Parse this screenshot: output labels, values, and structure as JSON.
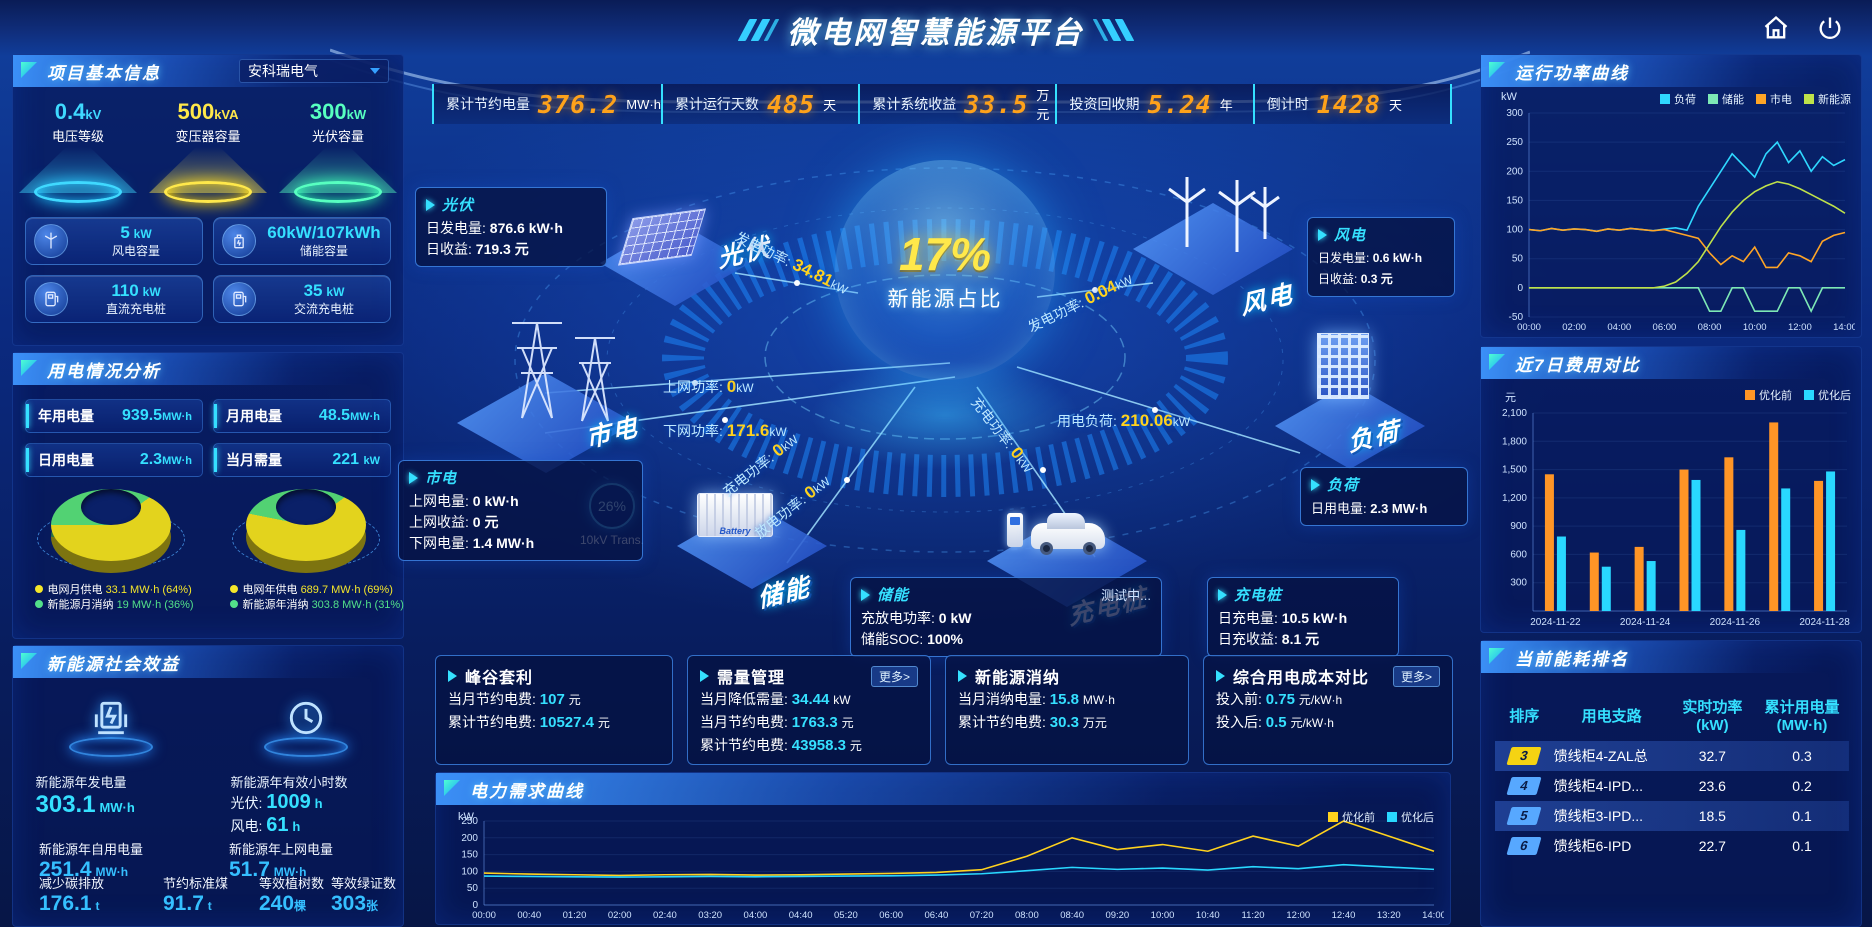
{
  "header": {
    "title": "微电网智慧能源平台",
    "home_icon": "home-icon",
    "power_icon": "power-icon"
  },
  "kpis": [
    {
      "label": "累计节约电量",
      "value": "376.2",
      "unit": "MW·h"
    },
    {
      "label": "累计运行天数",
      "value": "485",
      "unit": "天"
    },
    {
      "label": "累计系统收益",
      "value": "33.5",
      "unit": "万元"
    },
    {
      "label": "投资回收期",
      "value": "5.24",
      "unit": "年"
    },
    {
      "label": "倒计时",
      "value": "1428",
      "unit": "天"
    }
  ],
  "project": {
    "title": "项目基本信息",
    "selector": "安科瑞电气",
    "cones": [
      {
        "value": "0.4",
        "unit": "kV",
        "label": "电压等级"
      },
      {
        "value": "500",
        "unit": "kVA",
        "label": "变压器容量"
      },
      {
        "value": "300",
        "unit": "kW",
        "label": "光伏容量"
      }
    ],
    "capacities": [
      {
        "value": "5",
        "unit": "kW",
        "label": "风电容量"
      },
      {
        "value": "60kW/107kWh",
        "unit": "",
        "label": "储能容量"
      },
      {
        "value": "110",
        "unit": "kW",
        "label": "直流充电桩"
      },
      {
        "value": "35",
        "unit": "kW",
        "label": "交流充电桩"
      }
    ]
  },
  "usage": {
    "title": "用电情况分析",
    "stats": [
      {
        "label": "年用电量",
        "value": "939.5",
        "unit": "MW·h"
      },
      {
        "label": "月用电量",
        "value": "48.5",
        "unit": "MW·h"
      },
      {
        "label": "日用电量",
        "value": "2.3",
        "unit": "MW·h"
      },
      {
        "label": "当月需量",
        "value": "221",
        "unit": "kW"
      }
    ],
    "donuts": [
      {
        "slices": [
          64,
          36
        ],
        "colors": [
          "#e3d31d",
          "#52d273"
        ],
        "legend": [
          {
            "label": "电网月供电",
            "value": "33.1 MW·h (64%)",
            "color": "#f4e62a"
          },
          {
            "label": "新能源月消纳",
            "value": "19 MW·h (36%)",
            "color": "#52e08a"
          }
        ]
      },
      {
        "slices": [
          69,
          31
        ],
        "colors": [
          "#e3d31d",
          "#52d273"
        ],
        "legend": [
          {
            "label": "电网年供电",
            "value": "689.7 MW·h (69%)",
            "color": "#f4e62a"
          },
          {
            "label": "新能源年消纳",
            "value": "303.8 MW·h (31%)",
            "color": "#52e08a"
          }
        ]
      }
    ]
  },
  "benefit": {
    "title": "新能源社会效益",
    "gen_label": "新能源年发电量",
    "gen_value": "303.1",
    "gen_unit": "MW·h",
    "hours_label": "新能源年有效小时数",
    "hours_pv_label": "光伏:",
    "hours_pv_value": "1009",
    "hours_pv_unit": "h",
    "hours_wind_label": "风电:",
    "hours_wind_value": "61",
    "hours_wind_unit": "h",
    "self_label": "新能源年自用电量",
    "self_value": "251.4",
    "self_unit": "MW·h",
    "export_label": "新能源年上网电量",
    "export_value": "51.7",
    "export_unit": "MW·h",
    "co2_label": "减少碳排放",
    "co2_value": "176.1",
    "co2_unit": "t",
    "coal_label": "节约标准煤",
    "coal_value": "91.7",
    "coal_unit": "t",
    "trees_label": "等效植树数",
    "trees_value": "240",
    "trees_unit": "棵",
    "cert_label": "等效绿证数",
    "cert_value": "303",
    "cert_unit": "张"
  },
  "diagram": {
    "center_value": "17%",
    "center_label": "新能源占比",
    "nodes": {
      "pv": "光伏",
      "wind": "风电",
      "grid": "市电",
      "storage": "储能",
      "charger": "充电桩",
      "load": "负荷"
    },
    "transformer": {
      "percent": "26%",
      "label": "10kV Trans."
    },
    "flows": [
      {
        "label": "发电功率:",
        "value": "34.81",
        "unit": "kW"
      },
      {
        "label": "发电功率:",
        "value": "0.04",
        "unit": "kW"
      },
      {
        "label": "上网功率:",
        "value": "0",
        "unit": "kW"
      },
      {
        "label": "下网功率:",
        "value": "171.6",
        "unit": "kW"
      },
      {
        "label": "充电功率:",
        "value": "0",
        "unit": "kW"
      },
      {
        "label": "放电功率:",
        "value": "0",
        "unit": "kW"
      },
      {
        "label": "充电功率:",
        "value": "0",
        "unit": "kW"
      },
      {
        "label": "用电负荷:",
        "value": "210.06",
        "unit": "kW"
      }
    ],
    "info_boxes": {
      "pv": {
        "title": "光伏",
        "rows": [
          [
            "日发电量:",
            "876.6 kW·h"
          ],
          [
            "日收益:",
            "719.3 元"
          ]
        ]
      },
      "wind": {
        "title": "风电",
        "rows": [
          [
            "日发电量:",
            "0.6 kW·h"
          ],
          [
            "日收益:",
            "0.3 元"
          ]
        ]
      },
      "grid": {
        "title": "市电",
        "rows": [
          [
            "上网电量:",
            "0 kW·h"
          ],
          [
            "上网收益:",
            "0 元"
          ],
          [
            "下网电量:",
            "1.4 MW·h"
          ]
        ]
      },
      "storage": {
        "title": "储能",
        "status": "测试中...",
        "rows": [
          [
            "充放电功率:",
            "0 kW"
          ],
          [
            "储能SOC:",
            "100%"
          ]
        ]
      },
      "charger": {
        "title": "充电桩",
        "rows": [
          [
            "日充电量:",
            "10.5 kW·h"
          ],
          [
            "日充收益:",
            "8.1 元"
          ]
        ]
      },
      "load": {
        "title": "负荷",
        "rows": [
          [
            "日用电量:",
            "2.3 MW·h"
          ]
        ]
      }
    }
  },
  "strategies": [
    {
      "title": "峰谷套利",
      "more": "",
      "rows": [
        {
          "label": "当月节约电费:",
          "value": "107",
          "unit": "元"
        },
        {
          "label": "累计节约电费:",
          "value": "10527.4",
          "unit": "元"
        }
      ]
    },
    {
      "title": "需量管理",
      "more": "更多>",
      "rows": [
        {
          "label": "当月降低需量:",
          "value": "34.44",
          "unit": "kW"
        },
        {
          "label": "当月节约电费:",
          "value": "1763.3",
          "unit": "元"
        },
        {
          "label": "累计节约电费:",
          "value": "43958.3",
          "unit": "元"
        }
      ]
    },
    {
      "title": "新能源消纳",
      "more": "",
      "rows": [
        {
          "label": "当月消纳电量:",
          "value": "15.8",
          "unit": "MW·h"
        },
        {
          "label": "累计节约电费:",
          "value": "30.3",
          "unit": "万元"
        }
      ]
    },
    {
      "title": "综合用电成本对比",
      "more": "更多>",
      "rows": [
        {
          "label": "投入前:",
          "value": "0.75",
          "unit": "元/kW·h"
        },
        {
          "label": "投入后:",
          "value": "0.5",
          "unit": "元/kW·h"
        }
      ]
    }
  ],
  "chart_data": [
    {
      "id": "power_curve",
      "type": "line",
      "title": "运行功率曲线",
      "ylabel": "kW",
      "ylim": [
        -50,
        300
      ],
      "yticks": [
        300,
        250,
        200,
        150,
        100,
        50,
        0,
        -50
      ],
      "x_labels": [
        "00:00",
        "02:00",
        "04:00",
        "06:00",
        "08:00",
        "10:00",
        "12:00",
        "14:00"
      ],
      "legend_position": "top-right",
      "grid": false,
      "series": [
        {
          "name": "负荷",
          "color": "#2fd8ff",
          "values": [
            100,
            98,
            102,
            99,
            101,
            100,
            97,
            101,
            99,
            102,
            100,
            98,
            101,
            103,
            99,
            140,
            170,
            200,
            230,
            210,
            190,
            230,
            250,
            215,
            235,
            200,
            225,
            210,
            220
          ]
        },
        {
          "name": "储能",
          "color": "#7de8b5",
          "values": [
            0,
            0,
            0,
            0,
            0,
            0,
            0,
            0,
            0,
            0,
            0,
            0,
            0,
            0,
            0,
            0,
            -40,
            -40,
            0,
            0,
            -40,
            -40,
            -40,
            0,
            0,
            -40,
            0,
            0,
            0
          ]
        },
        {
          "name": "市电",
          "color": "#ffa526",
          "values": [
            100,
            98,
            102,
            99,
            101,
            100,
            97,
            101,
            99,
            102,
            100,
            98,
            100,
            95,
            90,
            85,
            60,
            40,
            55,
            45,
            70,
            35,
            35,
            60,
            55,
            45,
            80,
            90,
            95
          ]
        },
        {
          "name": "新能源",
          "color": "#bfe24a",
          "values": [
            0,
            0,
            0,
            0,
            0,
            0,
            0,
            0,
            0,
            0,
            0,
            0,
            3,
            10,
            25,
            45,
            75,
            105,
            130,
            150,
            165,
            175,
            182,
            178,
            170,
            160,
            150,
            140,
            128
          ]
        }
      ]
    },
    {
      "id": "cost_compare",
      "type": "bar",
      "title": "近7日费用对比",
      "ylabel": "元",
      "ylim": [
        0,
        2100
      ],
      "yticks": [
        2100,
        1800,
        1500,
        1200,
        900,
        600,
        300
      ],
      "categories": [
        "2024-11-22",
        "2024-11-23",
        "2024-11-24",
        "2024-11-25",
        "2024-11-26",
        "2024-11-27",
        "2024-11-28"
      ],
      "x_tick_labels": [
        "2024-11-22",
        "2024-11-24",
        "2024-11-26",
        "2024-11-28"
      ],
      "legend_position": "top-right",
      "grid": false,
      "series": [
        {
          "name": "优化前",
          "color": "#ff9526",
          "values": [
            1450,
            620,
            680,
            1500,
            1630,
            2000,
            1380
          ]
        },
        {
          "name": "优化后",
          "color": "#29d8ff",
          "values": [
            790,
            470,
            530,
            1390,
            860,
            1300,
            1480
          ]
        }
      ]
    },
    {
      "id": "demand_curve",
      "type": "line",
      "title": "电力需求曲线",
      "ylabel": "kW",
      "ylim": [
        0,
        250
      ],
      "yticks": [
        250,
        200,
        150,
        100,
        50,
        0
      ],
      "x_labels": [
        "00:00",
        "00:40",
        "01:20",
        "02:00",
        "02:40",
        "03:20",
        "04:00",
        "04:40",
        "05:20",
        "06:00",
        "06:40",
        "07:20",
        "08:00",
        "08:40",
        "09:20",
        "10:00",
        "10:40",
        "11:20",
        "12:00",
        "12:40",
        "13:20",
        "14:00"
      ],
      "legend_position": "top-right",
      "grid": false,
      "series": [
        {
          "name": "优化前",
          "color": "#ffd21e",
          "values": [
            95,
            92,
            90,
            88,
            90,
            91,
            89,
            90,
            92,
            94,
            97,
            105,
            145,
            200,
            165,
            180,
            160,
            205,
            175,
            250,
            205,
            160
          ]
        },
        {
          "name": "优化后",
          "color": "#29d8ff",
          "values": [
            86,
            85,
            84,
            83,
            84,
            85,
            84,
            85,
            86,
            87,
            89,
            93,
            102,
            112,
            106,
            110,
            104,
            114,
            108,
            120,
            113,
            106
          ]
        }
      ]
    }
  ],
  "ranking": {
    "title": "当前能耗排名",
    "columns": [
      {
        "l1": "排序",
        "l2": ""
      },
      {
        "l1": "用电支路",
        "l2": ""
      },
      {
        "l1": "实时功率",
        "l2": "(kW)"
      },
      {
        "l1": "累计用电量",
        "l2": "(MW·h)"
      }
    ],
    "rows": [
      {
        "rank": "3",
        "branch": "馈线柜4-ZAL总",
        "power": "32.7",
        "energy": "0.3",
        "badge": "#f5d312",
        "highlight": true
      },
      {
        "rank": "4",
        "branch": "馈线柜4-IPD...",
        "power": "23.6",
        "energy": "0.2",
        "badge": "#57a8ff",
        "highlight": false
      },
      {
        "rank": "5",
        "branch": "馈线柜3-IPD...",
        "power": "18.5",
        "energy": "0.1",
        "badge": "#57a8ff",
        "highlight": true
      },
      {
        "rank": "6",
        "branch": "馈线柜6-IPD",
        "power": "22.7",
        "energy": "0.1",
        "badge": "#57a8ff",
        "highlight": false
      }
    ]
  }
}
